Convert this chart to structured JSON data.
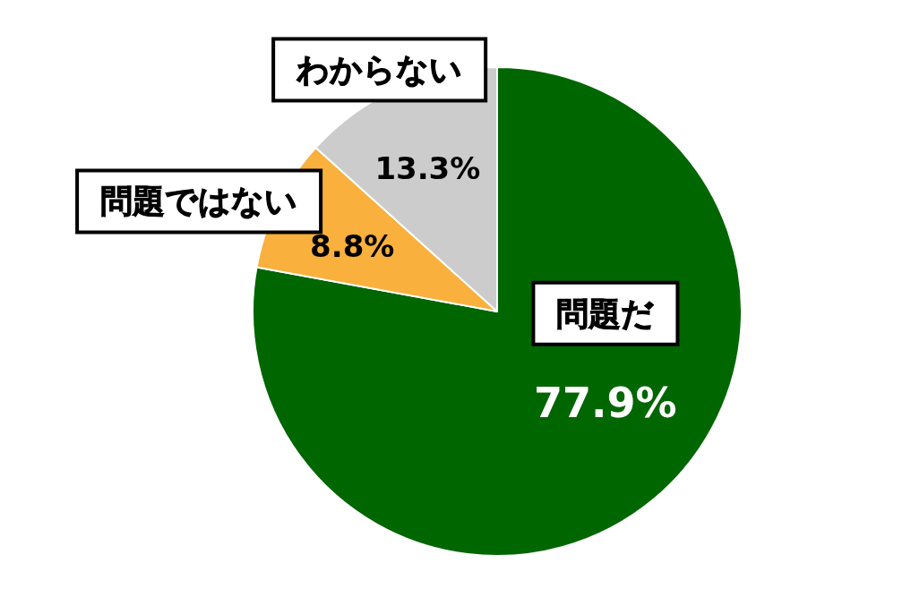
{
  "chart_data": {
    "type": "pie",
    "categories": [
      "問題だ",
      "問題ではない",
      "わからない"
    ],
    "values": [
      77.9,
      8.8,
      13.3
    ],
    "colors": [
      "#006600",
      "#f9b03c",
      "#cccccc"
    ],
    "value_labels": [
      "77.9%",
      "8.8%",
      "13.3%"
    ]
  }
}
